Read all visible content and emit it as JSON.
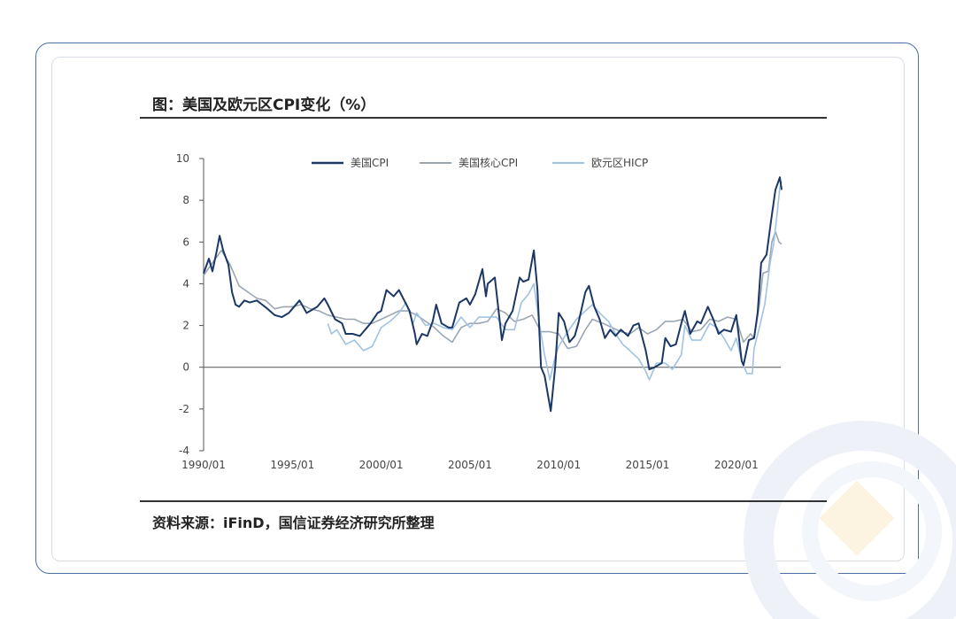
{
  "title": "图：美国及欧元区CPI变化（%）",
  "source": "资料来源：iFinD，国信证券经济研究所整理",
  "colors": {
    "cpi": "#1b3766",
    "core": "#9aa6b2",
    "hicp": "#9fc3e3",
    "frame": "#4a6fa5"
  },
  "chart_data": {
    "type": "line",
    "ylim": [
      -4,
      10
    ],
    "yticks": [
      -4,
      -2,
      0,
      2,
      4,
      6,
      8,
      10
    ],
    "xlim": [
      1990.0,
      2022.5
    ],
    "xticks": [
      {
        "value": 1990,
        "label": "1990/01"
      },
      {
        "value": 1995,
        "label": "1995/01"
      },
      {
        "value": 2000,
        "label": "2000/01"
      },
      {
        "value": 2005,
        "label": "2005/01"
      },
      {
        "value": 2010,
        "label": "2010/01"
      },
      {
        "value": 2015,
        "label": "2015/01"
      },
      {
        "value": 2020,
        "label": "2020/01"
      }
    ],
    "legend_position": "top",
    "series": [
      {
        "name": "美国CPI",
        "color_key": "cpi",
        "points": [
          [
            1990.0,
            4.5
          ],
          [
            1990.3,
            5.2
          ],
          [
            1990.5,
            4.6
          ],
          [
            1990.75,
            5.6
          ],
          [
            1990.9,
            6.3
          ],
          [
            1991.1,
            5.6
          ],
          [
            1991.4,
            4.9
          ],
          [
            1991.6,
            3.6
          ],
          [
            1991.8,
            3.0
          ],
          [
            1992.0,
            2.9
          ],
          [
            1992.3,
            3.2
          ],
          [
            1992.6,
            3.1
          ],
          [
            1993.0,
            3.2
          ],
          [
            1993.3,
            3.0
          ],
          [
            1993.6,
            2.8
          ],
          [
            1994.0,
            2.5
          ],
          [
            1994.4,
            2.4
          ],
          [
            1994.8,
            2.6
          ],
          [
            1995.0,
            2.8
          ],
          [
            1995.4,
            3.2
          ],
          [
            1995.8,
            2.6
          ],
          [
            1996.0,
            2.7
          ],
          [
            1996.4,
            2.9
          ],
          [
            1996.8,
            3.3
          ],
          [
            1997.0,
            3.0
          ],
          [
            1997.4,
            2.3
          ],
          [
            1997.8,
            2.1
          ],
          [
            1998.0,
            1.6
          ],
          [
            1998.4,
            1.6
          ],
          [
            1998.8,
            1.5
          ],
          [
            1999.0,
            1.7
          ],
          [
            1999.4,
            2.1
          ],
          [
            1999.8,
            2.6
          ],
          [
            2000.0,
            2.7
          ],
          [
            2000.3,
            3.7
          ],
          [
            2000.7,
            3.4
          ],
          [
            2001.0,
            3.7
          ],
          [
            2001.3,
            3.2
          ],
          [
            2001.6,
            2.7
          ],
          [
            2001.9,
            1.6
          ],
          [
            2002.0,
            1.1
          ],
          [
            2002.3,
            1.6
          ],
          [
            2002.6,
            1.5
          ],
          [
            2002.9,
            2.2
          ],
          [
            2003.1,
            3.0
          ],
          [
            2003.4,
            2.1
          ],
          [
            2003.8,
            1.9
          ],
          [
            2004.0,
            1.9
          ],
          [
            2004.4,
            3.1
          ],
          [
            2004.8,
            3.3
          ],
          [
            2005.0,
            3.0
          ],
          [
            2005.3,
            3.5
          ],
          [
            2005.7,
            4.7
          ],
          [
            2005.9,
            3.4
          ],
          [
            2006.0,
            4.0
          ],
          [
            2006.4,
            4.3
          ],
          [
            2006.8,
            1.3
          ],
          [
            2007.0,
            2.1
          ],
          [
            2007.4,
            2.7
          ],
          [
            2007.8,
            4.3
          ],
          [
            2008.0,
            4.1
          ],
          [
            2008.3,
            4.2
          ],
          [
            2008.6,
            5.6
          ],
          [
            2008.8,
            3.7
          ],
          [
            2009.0,
            0.0
          ],
          [
            2009.2,
            -0.4
          ],
          [
            2009.55,
            -2.1
          ],
          [
            2009.8,
            0.0
          ],
          [
            2010.0,
            2.6
          ],
          [
            2010.3,
            2.2
          ],
          [
            2010.6,
            1.2
          ],
          [
            2010.9,
            1.5
          ],
          [
            2011.1,
            2.1
          ],
          [
            2011.5,
            3.6
          ],
          [
            2011.7,
            3.9
          ],
          [
            2012.0,
            2.9
          ],
          [
            2012.3,
            2.3
          ],
          [
            2012.6,
            1.4
          ],
          [
            2012.9,
            1.8
          ],
          [
            2013.2,
            1.5
          ],
          [
            2013.5,
            1.8
          ],
          [
            2013.9,
            1.5
          ],
          [
            2014.2,
            2.0
          ],
          [
            2014.5,
            2.1
          ],
          [
            2014.9,
            0.8
          ],
          [
            2015.1,
            -0.1
          ],
          [
            2015.4,
            0.0
          ],
          [
            2015.8,
            0.2
          ],
          [
            2016.0,
            1.4
          ],
          [
            2016.3,
            1.0
          ],
          [
            2016.6,
            1.1
          ],
          [
            2016.9,
            2.1
          ],
          [
            2017.1,
            2.7
          ],
          [
            2017.4,
            1.6
          ],
          [
            2017.8,
            2.2
          ],
          [
            2018.0,
            2.1
          ],
          [
            2018.4,
            2.9
          ],
          [
            2018.7,
            2.3
          ],
          [
            2019.0,
            1.6
          ],
          [
            2019.3,
            1.8
          ],
          [
            2019.7,
            1.7
          ],
          [
            2020.0,
            2.5
          ],
          [
            2020.3,
            0.3
          ],
          [
            2020.4,
            0.1
          ],
          [
            2020.7,
            1.3
          ],
          [
            2021.0,
            1.4
          ],
          [
            2021.2,
            2.6
          ],
          [
            2021.4,
            5.0
          ],
          [
            2021.7,
            5.4
          ],
          [
            2021.95,
            7.0
          ],
          [
            2022.2,
            8.5
          ],
          [
            2022.45,
            9.1
          ],
          [
            2022.55,
            8.5
          ]
        ]
      },
      {
        "name": "美国核心CPI",
        "color_key": "core",
        "points": [
          [
            1990.0,
            4.4
          ],
          [
            1990.5,
            5.0
          ],
          [
            1991.0,
            5.6
          ],
          [
            1991.5,
            4.9
          ],
          [
            1992.0,
            3.9
          ],
          [
            1992.5,
            3.6
          ],
          [
            1993.0,
            3.3
          ],
          [
            1993.5,
            3.2
          ],
          [
            1994.0,
            2.8
          ],
          [
            1994.5,
            2.9
          ],
          [
            1995.0,
            2.9
          ],
          [
            1995.5,
            3.0
          ],
          [
            1996.0,
            2.8
          ],
          [
            1996.5,
            2.7
          ],
          [
            1997.0,
            2.5
          ],
          [
            1997.5,
            2.4
          ],
          [
            1998.0,
            2.3
          ],
          [
            1998.5,
            2.3
          ],
          [
            1999.0,
            2.1
          ],
          [
            1999.5,
            2.1
          ],
          [
            2000.0,
            2.3
          ],
          [
            2000.5,
            2.5
          ],
          [
            2001.0,
            2.7
          ],
          [
            2001.5,
            2.7
          ],
          [
            2002.0,
            2.5
          ],
          [
            2002.5,
            2.2
          ],
          [
            2003.0,
            1.9
          ],
          [
            2003.5,
            1.5
          ],
          [
            2004.0,
            1.2
          ],
          [
            2004.5,
            1.9
          ],
          [
            2005.0,
            2.1
          ],
          [
            2005.5,
            2.1
          ],
          [
            2006.0,
            2.2
          ],
          [
            2006.5,
            2.8
          ],
          [
            2007.0,
            2.6
          ],
          [
            2007.5,
            2.2
          ],
          [
            2008.0,
            2.3
          ],
          [
            2008.5,
            2.5
          ],
          [
            2009.0,
            1.7
          ],
          [
            2009.5,
            1.7
          ],
          [
            2010.0,
            1.6
          ],
          [
            2010.5,
            0.9
          ],
          [
            2011.0,
            1.0
          ],
          [
            2011.5,
            1.8
          ],
          [
            2011.9,
            2.3
          ],
          [
            2012.5,
            2.1
          ],
          [
            2013.0,
            1.9
          ],
          [
            2013.5,
            1.7
          ],
          [
            2014.0,
            1.6
          ],
          [
            2014.5,
            1.9
          ],
          [
            2015.0,
            1.6
          ],
          [
            2015.5,
            1.8
          ],
          [
            2016.0,
            2.2
          ],
          [
            2016.5,
            2.2
          ],
          [
            2017.0,
            2.3
          ],
          [
            2017.5,
            1.7
          ],
          [
            2018.0,
            1.8
          ],
          [
            2018.5,
            2.3
          ],
          [
            2019.0,
            2.2
          ],
          [
            2019.5,
            2.4
          ],
          [
            2020.0,
            2.3
          ],
          [
            2020.4,
            1.2
          ],
          [
            2020.8,
            1.6
          ],
          [
            2021.0,
            1.4
          ],
          [
            2021.3,
            3.0
          ],
          [
            2021.5,
            4.5
          ],
          [
            2021.8,
            4.6
          ],
          [
            2022.0,
            6.0
          ],
          [
            2022.2,
            6.5
          ],
          [
            2022.4,
            6.0
          ],
          [
            2022.55,
            5.9
          ]
        ]
      },
      {
        "name": "欧元区HICP",
        "color_key": "hicp",
        "points": [
          [
            1997.0,
            2.1
          ],
          [
            1997.2,
            1.6
          ],
          [
            1997.5,
            1.8
          ],
          [
            1998.0,
            1.1
          ],
          [
            1998.5,
            1.3
          ],
          [
            1999.0,
            0.8
          ],
          [
            1999.5,
            1.0
          ],
          [
            2000.0,
            1.9
          ],
          [
            2000.5,
            2.2
          ],
          [
            2001.0,
            2.6
          ],
          [
            2001.4,
            3.1
          ],
          [
            2001.8,
            2.1
          ],
          [
            2002.0,
            2.6
          ],
          [
            2002.5,
            2.0
          ],
          [
            2003.0,
            2.1
          ],
          [
            2003.5,
            1.9
          ],
          [
            2004.0,
            1.8
          ],
          [
            2004.5,
            2.4
          ],
          [
            2005.0,
            1.9
          ],
          [
            2005.5,
            2.4
          ],
          [
            2006.0,
            2.4
          ],
          [
            2006.5,
            2.4
          ],
          [
            2007.0,
            1.8
          ],
          [
            2007.5,
            1.8
          ],
          [
            2007.9,
            3.1
          ],
          [
            2008.3,
            3.5
          ],
          [
            2008.6,
            4.0
          ],
          [
            2008.9,
            2.1
          ],
          [
            2009.2,
            0.6
          ],
          [
            2009.5,
            -0.6
          ],
          [
            2009.8,
            0.5
          ],
          [
            2010.0,
            1.0
          ],
          [
            2010.5,
            1.7
          ],
          [
            2011.0,
            2.3
          ],
          [
            2011.5,
            2.7
          ],
          [
            2011.9,
            3.0
          ],
          [
            2012.3,
            2.6
          ],
          [
            2012.8,
            2.2
          ],
          [
            2013.2,
            1.6
          ],
          [
            2013.6,
            1.1
          ],
          [
            2014.0,
            0.8
          ],
          [
            2014.5,
            0.4
          ],
          [
            2014.9,
            -0.2
          ],
          [
            2015.1,
            -0.6
          ],
          [
            2015.5,
            0.2
          ],
          [
            2016.0,
            0.2
          ],
          [
            2016.4,
            -0.1
          ],
          [
            2016.9,
            0.6
          ],
          [
            2017.1,
            2.0
          ],
          [
            2017.5,
            1.3
          ],
          [
            2018.0,
            1.3
          ],
          [
            2018.5,
            2.1
          ],
          [
            2018.9,
            1.9
          ],
          [
            2019.3,
            1.4
          ],
          [
            2019.7,
            0.8
          ],
          [
            2020.0,
            1.4
          ],
          [
            2020.3,
            0.3
          ],
          [
            2020.6,
            -0.3
          ],
          [
            2020.9,
            -0.3
          ],
          [
            2021.0,
            0.9
          ],
          [
            2021.3,
            1.9
          ],
          [
            2021.6,
            3.0
          ],
          [
            2021.9,
            5.0
          ],
          [
            2022.1,
            5.9
          ],
          [
            2022.3,
            7.4
          ],
          [
            2022.45,
            8.6
          ],
          [
            2022.55,
            8.9
          ]
        ]
      }
    ]
  }
}
